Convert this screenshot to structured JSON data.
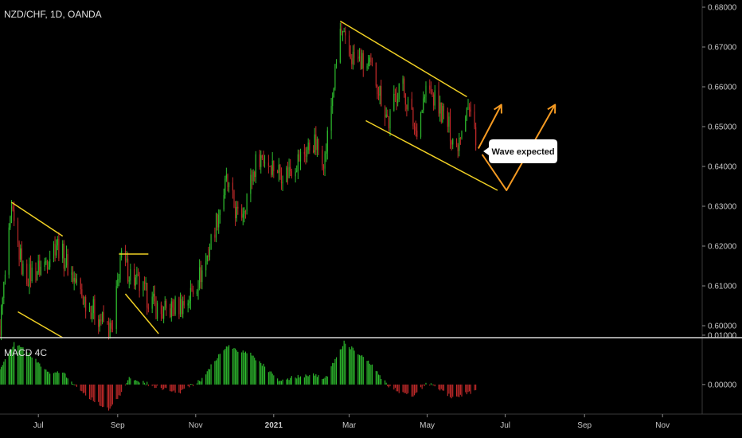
{
  "colors": {
    "background": "#000000",
    "up": "#2ebd2e",
    "down": "#c42a2a",
    "trendline": "#f0d024",
    "projection": "#f59a22",
    "separator": "#d8d8d8",
    "axis_text": "#c8c8c8"
  },
  "chart_data": [
    {
      "type": "candlestick",
      "title": "NZD/CHF, 1D, OANDA",
      "ylim": [
        0.597,
        0.681
      ],
      "y_ticks": [
        "0.68000",
        "0.67000",
        "0.66000",
        "0.65000",
        "0.64000",
        "0.63000",
        "0.62000",
        "0.61000",
        "0.60000"
      ],
      "x_ticks": [
        "Jul",
        "Sep",
        "Nov",
        "2021",
        "Mar",
        "May",
        "Jul",
        "Sep",
        "Nov"
      ],
      "x_range": [
        "2020-06-01",
        "2021-12-02"
      ],
      "series_anchors": [
        {
          "date": "2020-06-01",
          "value": 0.6
        },
        {
          "date": "2020-06-10",
          "value": 0.628
        },
        {
          "date": "2020-06-20",
          "value": 0.612
        },
        {
          "date": "2020-07-05",
          "value": 0.615
        },
        {
          "date": "2020-07-15",
          "value": 0.621
        },
        {
          "date": "2020-08-05",
          "value": 0.607
        },
        {
          "date": "2020-08-28",
          "value": 0.598
        },
        {
          "date": "2020-09-03",
          "value": 0.617
        },
        {
          "date": "2020-09-15",
          "value": 0.611
        },
        {
          "date": "2020-10-05",
          "value": 0.603
        },
        {
          "date": "2020-10-25",
          "value": 0.606
        },
        {
          "date": "2020-11-08",
          "value": 0.615
        },
        {
          "date": "2020-11-25",
          "value": 0.636
        },
        {
          "date": "2020-12-05",
          "value": 0.626
        },
        {
          "date": "2020-12-20",
          "value": 0.643
        },
        {
          "date": "2021-01-10",
          "value": 0.638
        },
        {
          "date": "2021-02-01",
          "value": 0.646
        },
        {
          "date": "2021-02-10",
          "value": 0.642
        },
        {
          "date": "2021-02-22",
          "value": 0.674
        },
        {
          "date": "2021-03-01",
          "value": 0.668
        },
        {
          "date": "2021-03-20",
          "value": 0.664
        },
        {
          "date": "2021-04-01",
          "value": 0.651
        },
        {
          "date": "2021-04-10",
          "value": 0.662
        },
        {
          "date": "2021-04-22",
          "value": 0.649
        },
        {
          "date": "2021-05-01",
          "value": 0.66
        },
        {
          "date": "2021-05-15",
          "value": 0.652
        },
        {
          "date": "2021-05-24",
          "value": 0.645
        },
        {
          "date": "2021-06-01",
          "value": 0.656
        },
        {
          "date": "2021-06-08",
          "value": 0.648
        }
      ],
      "trendlines": [
        {
          "role": "channel-upper",
          "from": {
            "date": "2021-02-22",
            "value": 0.6765
          },
          "to": {
            "date": "2021-06-01",
            "value": 0.6575
          }
        },
        {
          "role": "channel-lower",
          "from": {
            "date": "2021-03-14",
            "value": 0.6515
          },
          "to": {
            "date": "2021-06-25",
            "value": 0.634
          }
        },
        {
          "role": "flag-1-upper",
          "from": {
            "date": "2020-06-10",
            "value": 0.631
          },
          "to": {
            "date": "2020-07-20",
            "value": 0.6225
          }
        },
        {
          "role": "flag-1-lower",
          "from": {
            "date": "2020-06-15",
            "value": 0.6035
          },
          "to": {
            "date": "2020-07-20",
            "value": 0.597
          }
        },
        {
          "role": "flag-2-top",
          "from": {
            "date": "2020-09-02",
            "value": 0.618
          },
          "to": {
            "date": "2020-09-25",
            "value": 0.618
          }
        },
        {
          "role": "flag-2-lower",
          "from": {
            "date": "2020-09-07",
            "value": 0.608
          },
          "to": {
            "date": "2020-10-03",
            "value": 0.598
          }
        }
      ],
      "projections": [
        {
          "scenario": "short",
          "points": [
            {
              "date": "2021-06-10",
              "value": 0.6445
            },
            {
              "date": "2021-06-28",
              "value": 0.6555
            }
          ]
        },
        {
          "scenario": "deep",
          "points": [
            {
              "date": "2021-06-13",
              "value": 0.643
            },
            {
              "date": "2021-07-02",
              "value": 0.634
            },
            {
              "date": "2021-08-09",
              "value": 0.6555
            }
          ]
        }
      ],
      "annotations": [
        {
          "text": "Wave expected",
          "date": "2021-07-15",
          "value": 0.6438
        }
      ]
    },
    {
      "type": "histogram",
      "title": "MACD 4C",
      "y_ticks": [
        "0.01000",
        "0.00000"
      ],
      "ylim": [
        -0.006,
        0.0095
      ],
      "x_range": [
        "2020-06-01",
        "2021-12-02"
      ],
      "last_date": "2021-06-08",
      "anchors": [
        {
          "date": "2020-06-01",
          "value": 0.003
        },
        {
          "date": "2020-06-12",
          "value": 0.0085
        },
        {
          "date": "2020-06-25",
          "value": 0.006
        },
        {
          "date": "2020-07-10",
          "value": 0.002
        },
        {
          "date": "2020-07-20",
          "value": 0.0025
        },
        {
          "date": "2020-08-01",
          "value": -0.001
        },
        {
          "date": "2020-08-25",
          "value": -0.0052
        },
        {
          "date": "2020-09-02",
          "value": -0.0025
        },
        {
          "date": "2020-09-10",
          "value": 0.0015
        },
        {
          "date": "2020-10-01",
          "value": -0.0005
        },
        {
          "date": "2020-10-20",
          "value": -0.0015
        },
        {
          "date": "2020-11-05",
          "value": 0.001
        },
        {
          "date": "2020-11-25",
          "value": 0.0078
        },
        {
          "date": "2020-12-15",
          "value": 0.006
        },
        {
          "date": "2021-01-05",
          "value": 0.001
        },
        {
          "date": "2021-02-01",
          "value": 0.002
        },
        {
          "date": "2021-02-10",
          "value": 0.001
        },
        {
          "date": "2021-02-25",
          "value": 0.0085
        },
        {
          "date": "2021-03-15",
          "value": 0.005
        },
        {
          "date": "2021-04-01",
          "value": -0.0005
        },
        {
          "date": "2021-04-20",
          "value": -0.0025
        },
        {
          "date": "2021-05-01",
          "value": 0.0005
        },
        {
          "date": "2021-05-20",
          "value": -0.0025
        },
        {
          "date": "2021-06-08",
          "value": -0.0015
        }
      ]
    }
  ]
}
